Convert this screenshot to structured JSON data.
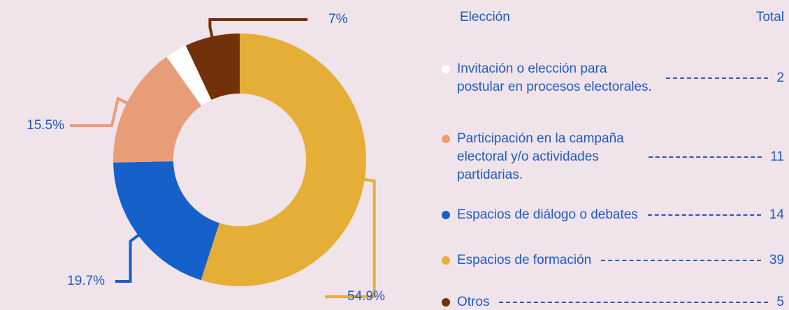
{
  "chart_data": {
    "type": "pie",
    "donut": true,
    "categories": [
      "Invitación o elección para postular en procesos electorales.",
      "Participación en la campaña electoral y/o actividades partidarias.",
      "Espacios de diálogo o debates",
      "Espacios de formación",
      "Otros"
    ],
    "values": [
      2.8,
      15.5,
      19.7,
      54.9,
      7
    ],
    "value_labels": [
      null,
      "15.5%",
      "19.7%",
      "54.9%",
      "7%"
    ],
    "colors": [
      "#ffffff",
      "#e89d78",
      "#1560c9",
      "#e5ae37",
      "#72300b"
    ],
    "legend_title": "Elección",
    "total_label": "Total",
    "totals": [
      2,
      11,
      14,
      39,
      5
    ]
  }
}
